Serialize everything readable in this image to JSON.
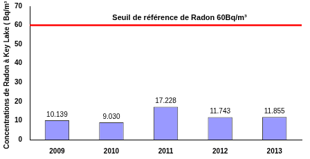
{
  "chart_data": {
    "type": "bar",
    "y_label": "Concentrations de Radon à Key Lake ( Bq/m³ )",
    "categories": [
      "2009",
      "2010",
      "2011",
      "2012",
      "2013"
    ],
    "values": [
      10.139,
      9.03,
      17.228,
      11.743,
      11.855
    ],
    "value_labels": [
      "10.139",
      "9.030",
      "17.228",
      "11.743",
      "11.855"
    ],
    "color": "#9999ff",
    "ylim": [
      0,
      70
    ],
    "yticks": [
      0,
      10,
      20,
      30,
      40,
      50,
      60,
      70
    ],
    "grid": false,
    "data_labels": true,
    "annotations": [
      {
        "text": "Seuil de référence de Radon 60Bq/m³",
        "y": 60,
        "color": "#ff0000"
      }
    ]
  }
}
